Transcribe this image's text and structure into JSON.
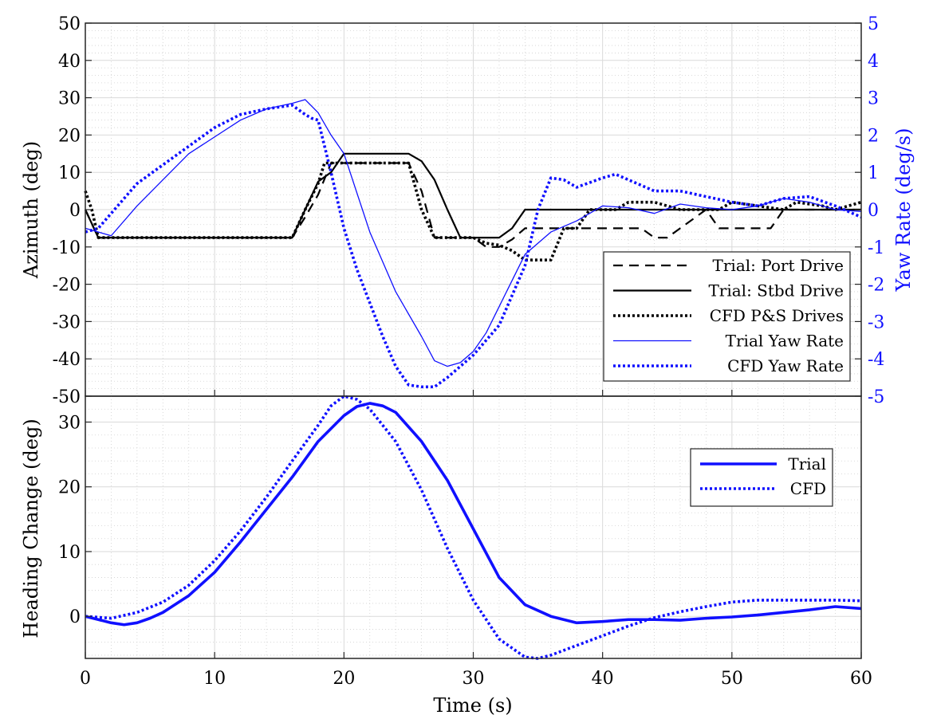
{
  "chart_data": [
    {
      "type": "line",
      "xlim": [
        0,
        60
      ],
      "xticks": [
        0,
        10,
        20,
        30,
        40,
        50,
        60
      ],
      "ylabel": "Azimuth (deg)",
      "ylim": [
        -50,
        50
      ],
      "yticks": [
        -50,
        -40,
        -30,
        -20,
        -10,
        0,
        10,
        20,
        30,
        40,
        50
      ],
      "y2label": "Yaw Rate (deg/s)",
      "y2lim": [
        -5,
        5
      ],
      "y2ticks": [
        -5,
        -4,
        -3,
        -2,
        -1,
        0,
        1,
        2,
        3,
        4,
        5
      ],
      "grid": true,
      "legend_position": "lower-right",
      "series": [
        {
          "name": "Trial: Port Drive",
          "axis": "left",
          "color": "#000000",
          "style": "dashed",
          "x": [
            0,
            1,
            16,
            17,
            18,
            19,
            25,
            26,
            27,
            30,
            31,
            32,
            33,
            34,
            43,
            44,
            45,
            46,
            48,
            49,
            53,
            54,
            55,
            56,
            60
          ],
          "y": [
            0,
            -7.5,
            -7.5,
            -2,
            4,
            12.5,
            12.5,
            5,
            -7.5,
            -7.5,
            -10,
            -10,
            -8,
            -5,
            -5,
            -7.5,
            -7.5,
            -5,
            0,
            -5,
            -5,
            0,
            0,
            0,
            0
          ]
        },
        {
          "name": "Trial: Stbd Drive",
          "axis": "left",
          "color": "#000000",
          "style": "solid",
          "x": [
            0,
            1,
            16,
            17,
            18,
            19,
            20,
            25,
            26,
            27,
            28,
            29,
            32,
            33,
            34,
            55,
            56,
            60
          ],
          "y": [
            0,
            -7.5,
            -7.5,
            0,
            7.5,
            10,
            15,
            15,
            13,
            8,
            0,
            -7.5,
            -7.5,
            -5,
            0,
            0,
            0,
            0
          ]
        },
        {
          "name": "CFD P&S Drives",
          "axis": "left",
          "color": "#000000",
          "style": "dotted",
          "x": [
            0,
            0.5,
            1,
            16,
            17,
            18,
            18.5,
            19,
            25,
            26,
            27,
            30,
            31,
            32,
            33,
            34,
            35,
            36,
            37,
            38,
            39,
            40,
            41,
            42,
            44,
            46,
            49,
            50,
            54,
            55,
            57,
            58,
            60
          ],
          "y": [
            5,
            0,
            -7.5,
            -7.5,
            0,
            7,
            12.5,
            12.5,
            12.5,
            0,
            -7.5,
            -7.5,
            -9,
            -9.5,
            -11,
            -13.5,
            -13.5,
            -13.5,
            -5,
            -5,
            0,
            0,
            0,
            2,
            2,
            0,
            0,
            2,
            0,
            2,
            1,
            0,
            2
          ]
        },
        {
          "name": "Trial Yaw Rate",
          "axis": "right",
          "color": "#1010ff",
          "style": "thin-solid",
          "x": [
            0,
            2,
            4,
            6,
            8,
            10,
            12,
            14,
            16,
            17,
            18,
            19,
            20,
            22,
            24,
            26,
            27,
            28,
            29,
            30,
            31,
            32,
            34,
            36,
            38,
            40,
            42,
            44,
            46,
            48,
            50,
            52,
            54,
            56,
            58,
            60
          ],
          "y": [
            -0.5,
            -0.7,
            0.1,
            0.8,
            1.5,
            1.95,
            2.4,
            2.7,
            2.85,
            2.95,
            2.6,
            2.0,
            1.5,
            -0.6,
            -2.2,
            -3.4,
            -4.05,
            -4.2,
            -4.1,
            -3.8,
            -3.3,
            -2.6,
            -1.2,
            -0.6,
            -0.3,
            0.1,
            0.05,
            -0.1,
            0.15,
            0.05,
            0.0,
            0.1,
            0.3,
            0.2,
            0.0,
            -0.05
          ]
        },
        {
          "name": "CFD Yaw Rate",
          "axis": "right",
          "color": "#1010ff",
          "style": "dotted",
          "x": [
            0,
            1,
            2,
            3,
            4,
            6,
            8,
            10,
            12,
            14,
            16,
            17,
            17.5,
            18,
            19,
            20,
            21,
            22,
            23,
            24,
            25,
            26,
            27,
            28,
            30,
            32,
            34,
            35,
            36,
            37,
            38,
            40,
            41,
            42,
            44,
            46,
            48,
            50,
            52,
            54,
            56,
            58,
            60
          ],
          "y": [
            -0.6,
            -0.5,
            -0.1,
            0.3,
            0.7,
            1.2,
            1.7,
            2.2,
            2.55,
            2.7,
            2.8,
            2.55,
            2.45,
            2.4,
            1.0,
            -0.5,
            -1.6,
            -2.5,
            -3.4,
            -4.2,
            -4.7,
            -4.75,
            -4.75,
            -4.5,
            -3.9,
            -3.1,
            -1.5,
            0.0,
            0.85,
            0.8,
            0.6,
            0.85,
            0.95,
            0.8,
            0.5,
            0.5,
            0.35,
            0.2,
            0.1,
            0.3,
            0.35,
            0.1,
            -0.2
          ]
        }
      ],
      "legend": [
        "Trial: Port Drive",
        "Trial: Stbd Drive",
        "CFD P&S Drives",
        "Trial Yaw Rate",
        "CFD Yaw Rate"
      ]
    },
    {
      "type": "line",
      "xlabel": "Time (s)",
      "xlim": [
        0,
        60
      ],
      "xticks": [
        0,
        10,
        20,
        30,
        40,
        50,
        60
      ],
      "ylabel": "Heading Change (deg)",
      "ylim": [
        -6.5,
        34
      ],
      "yticks": [
        0,
        10,
        20,
        30
      ],
      "grid": true,
      "legend_position": "top-right",
      "series": [
        {
          "name": "Trial",
          "color": "#1010ff",
          "style": "thick-solid",
          "x": [
            0,
            1,
            2,
            3,
            4,
            5,
            6,
            8,
            10,
            12,
            14,
            16,
            18,
            20,
            21,
            22,
            23,
            24,
            26,
            28,
            30,
            32,
            34,
            36,
            38,
            40,
            42,
            44,
            46,
            48,
            50,
            52,
            54,
            56,
            58,
            60
          ],
          "y": [
            0,
            -0.5,
            -1.0,
            -1.3,
            -1.0,
            -0.3,
            0.6,
            3.2,
            6.8,
            11.5,
            16.5,
            21.5,
            27.0,
            31.0,
            32.4,
            32.9,
            32.5,
            31.5,
            27.0,
            21.0,
            13.5,
            6.0,
            1.8,
            0.0,
            -1.0,
            -0.8,
            -0.5,
            -0.5,
            -0.6,
            -0.3,
            -0.1,
            0.2,
            0.6,
            1.0,
            1.5,
            1.2
          ]
        },
        {
          "name": "CFD",
          "color": "#1010ff",
          "style": "dotted",
          "x": [
            0,
            2,
            4,
            6,
            8,
            10,
            12,
            14,
            16,
            18,
            19,
            20,
            21,
            22,
            24,
            26,
            28,
            30,
            32,
            34,
            35,
            36,
            38,
            40,
            42,
            44,
            46,
            48,
            50,
            52,
            54,
            56,
            58,
            60
          ],
          "y": [
            0,
            -0.3,
            0.6,
            2.2,
            4.8,
            8.6,
            13.2,
            18.4,
            24.0,
            29.5,
            32.5,
            34.0,
            33.5,
            32.0,
            27.0,
            19.5,
            10.5,
            2.5,
            -3.5,
            -6.3,
            -6.5,
            -6.0,
            -4.5,
            -3.0,
            -1.5,
            -0.2,
            0.7,
            1.5,
            2.2,
            2.5,
            2.5,
            2.5,
            2.5,
            2.4
          ]
        }
      ],
      "legend": [
        "Trial",
        "CFD"
      ]
    }
  ]
}
